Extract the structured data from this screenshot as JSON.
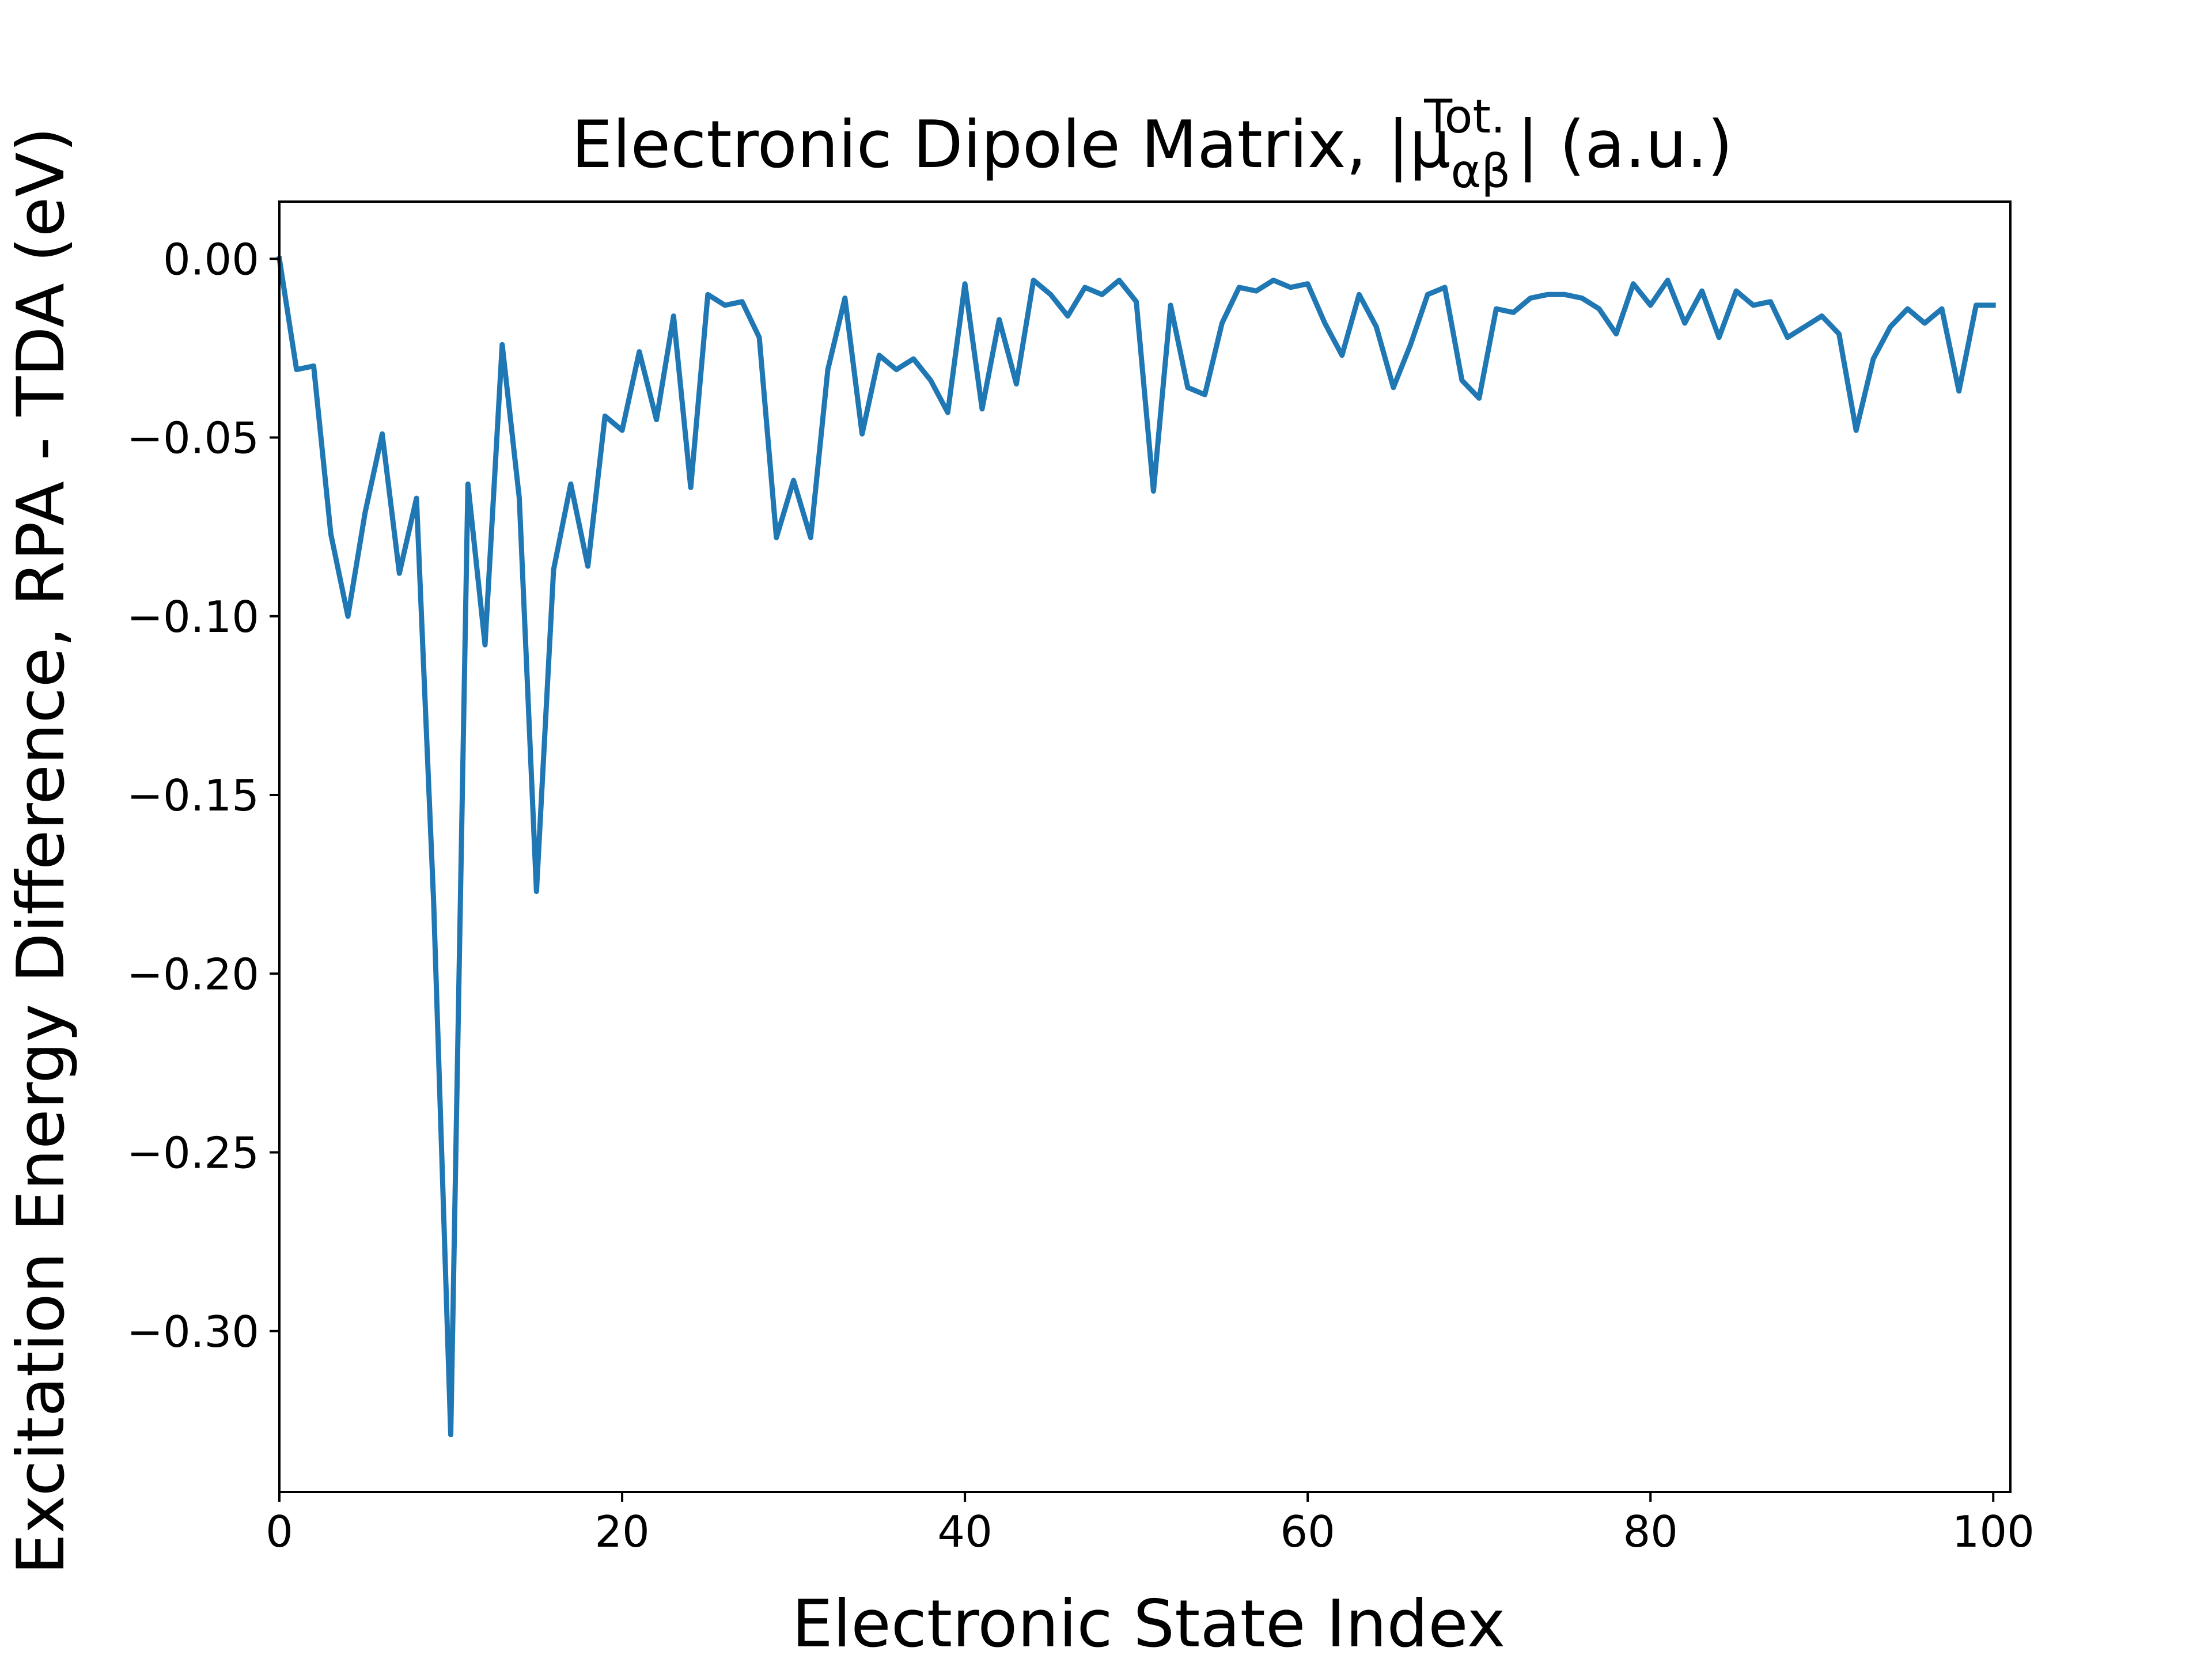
{
  "chart_data": {
    "type": "line",
    "title": "Electronic Dipole Matrix, |μ",
    "title_sup": "Tot.",
    "title_sub": "αβ",
    "title_tail": "| (a.u.)",
    "xlabel": "Electronic State Index",
    "ylabel": "Excitation Energy Difference, RPA - TDA (eV)",
    "xlim": [
      0,
      101
    ],
    "ylim": [
      -0.345,
      0.016
    ],
    "xticks": [
      0,
      20,
      40,
      60,
      80,
      100
    ],
    "xtick_labels": [
      "0",
      "20",
      "40",
      "60",
      "80",
      "100"
    ],
    "yticks": [
      0.0,
      -0.05,
      -0.1,
      -0.15,
      -0.2,
      -0.25,
      -0.3
    ],
    "ytick_labels": [
      "0.00",
      "−0.05",
      "−0.10",
      "−0.15",
      "−0.20",
      "−0.25",
      "−0.30"
    ],
    "grid": false,
    "series": [
      {
        "color": "#1f77b4",
        "x": [
          0,
          1,
          2,
          3,
          4,
          5,
          6,
          7,
          8,
          9,
          10,
          11,
          12,
          13,
          14,
          15,
          16,
          17,
          18,
          19,
          20,
          21,
          22,
          23,
          24,
          25,
          26,
          27,
          28,
          29,
          30,
          31,
          32,
          33,
          34,
          35,
          36,
          37,
          38,
          39,
          40,
          41,
          42,
          43,
          44,
          45,
          46,
          47,
          48,
          49,
          50,
          51,
          52,
          53,
          54,
          55,
          56,
          57,
          58,
          59,
          60,
          61,
          62,
          63,
          64,
          65,
          66,
          67,
          68,
          69,
          70,
          71,
          72,
          73,
          74,
          75,
          76,
          77,
          78,
          79,
          80,
          81,
          82,
          83,
          84,
          85,
          86,
          87,
          88,
          89,
          90,
          91,
          92,
          93,
          94,
          95,
          96,
          97,
          98,
          99,
          100
        ],
        "y": [
          0.0,
          -0.031,
          -0.03,
          -0.077,
          -0.1,
          -0.071,
          -0.049,
          -0.088,
          -0.067,
          -0.18,
          -0.329,
          -0.063,
          -0.108,
          -0.024,
          -0.067,
          -0.177,
          -0.087,
          -0.063,
          -0.086,
          -0.044,
          -0.048,
          -0.026,
          -0.045,
          -0.016,
          -0.064,
          -0.01,
          -0.013,
          -0.012,
          -0.022,
          -0.078,
          -0.062,
          -0.078,
          -0.031,
          -0.011,
          -0.049,
          -0.027,
          -0.031,
          -0.028,
          -0.034,
          -0.043,
          -0.007,
          -0.042,
          -0.017,
          -0.035,
          -0.006,
          -0.01,
          -0.016,
          -0.008,
          -0.01,
          -0.006,
          -0.012,
          -0.065,
          -0.013,
          -0.036,
          -0.038,
          -0.018,
          -0.008,
          -0.009,
          -0.006,
          -0.008,
          -0.007,
          -0.018,
          -0.027,
          -0.01,
          -0.019,
          -0.036,
          -0.024,
          -0.01,
          -0.008,
          -0.034,
          -0.039,
          -0.014,
          -0.015,
          -0.011,
          -0.01,
          -0.01,
          -0.011,
          -0.014,
          -0.021,
          -0.007,
          -0.013,
          -0.006,
          -0.018,
          -0.009,
          -0.022,
          -0.009,
          -0.013,
          -0.012,
          -0.022,
          -0.019,
          -0.016,
          -0.021,
          -0.048,
          -0.028,
          -0.019,
          -0.014,
          -0.018,
          -0.014,
          -0.037,
          -0.013,
          -0.013
        ]
      }
    ]
  }
}
